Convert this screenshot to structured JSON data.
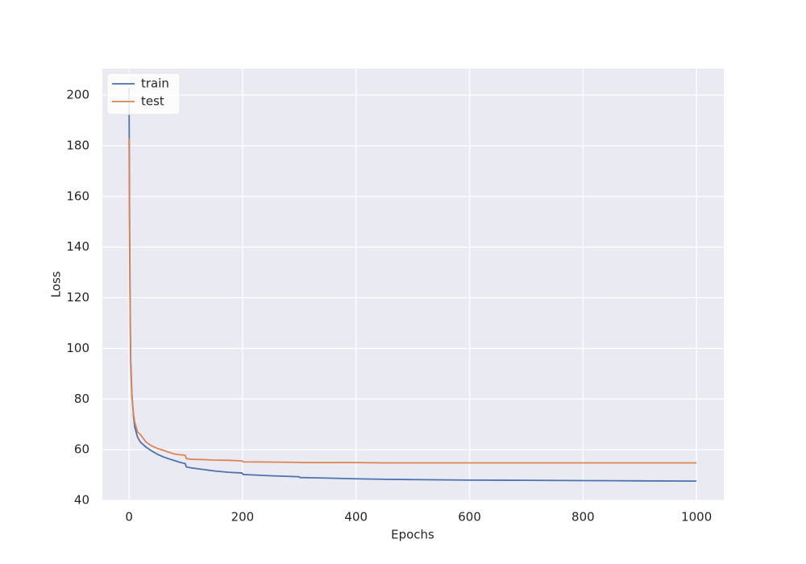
{
  "chart_data": {
    "type": "line",
    "x_label": "Epochs",
    "y_label": "Loss",
    "x": [
      0,
      1,
      2,
      3,
      5,
      8,
      10,
      15,
      20,
      30,
      40,
      50,
      60,
      70,
      80,
      90,
      99,
      101,
      110,
      130,
      150,
      175,
      199,
      201,
      250,
      300,
      301,
      350,
      400,
      450,
      500,
      600,
      700,
      800,
      900,
      1000
    ],
    "series": [
      {
        "name": "train",
        "color": "#4c72b0",
        "values": [
          203,
          150,
          115,
          95,
          82,
          73,
          69,
          65,
          63,
          61,
          59.5,
          58.2,
          57.2,
          56.4,
          55.7,
          55.0,
          54.5,
          53.2,
          52.8,
          52.2,
          51.6,
          51.1,
          50.8,
          50.2,
          49.7,
          49.3,
          49.0,
          48.8,
          48.5,
          48.3,
          48.2,
          48.0,
          47.9,
          47.8,
          47.7,
          47.6
        ]
      },
      {
        "name": "test",
        "color": "#dd8452",
        "values": [
          183,
          140,
          110,
          92,
          81,
          74,
          71,
          67,
          66,
          63,
          61.5,
          60.5,
          59.8,
          59,
          58.3,
          58,
          57.8,
          56.5,
          56.2,
          56.1,
          55.9,
          55.8,
          55.6,
          55.2,
          55.1,
          55.0,
          54.9,
          54.9,
          54.9,
          54.8,
          54.8,
          54.8,
          54.8,
          54.8,
          54.8,
          54.8
        ]
      }
    ],
    "xlim": [
      -47,
      1048
    ],
    "ylim": [
      40,
      210.5
    ],
    "xticks": [
      0,
      200,
      400,
      600,
      800,
      1000
    ],
    "yticks": [
      40,
      60,
      80,
      100,
      120,
      140,
      160,
      180,
      200
    ],
    "grid": true,
    "legend": "upper left"
  }
}
